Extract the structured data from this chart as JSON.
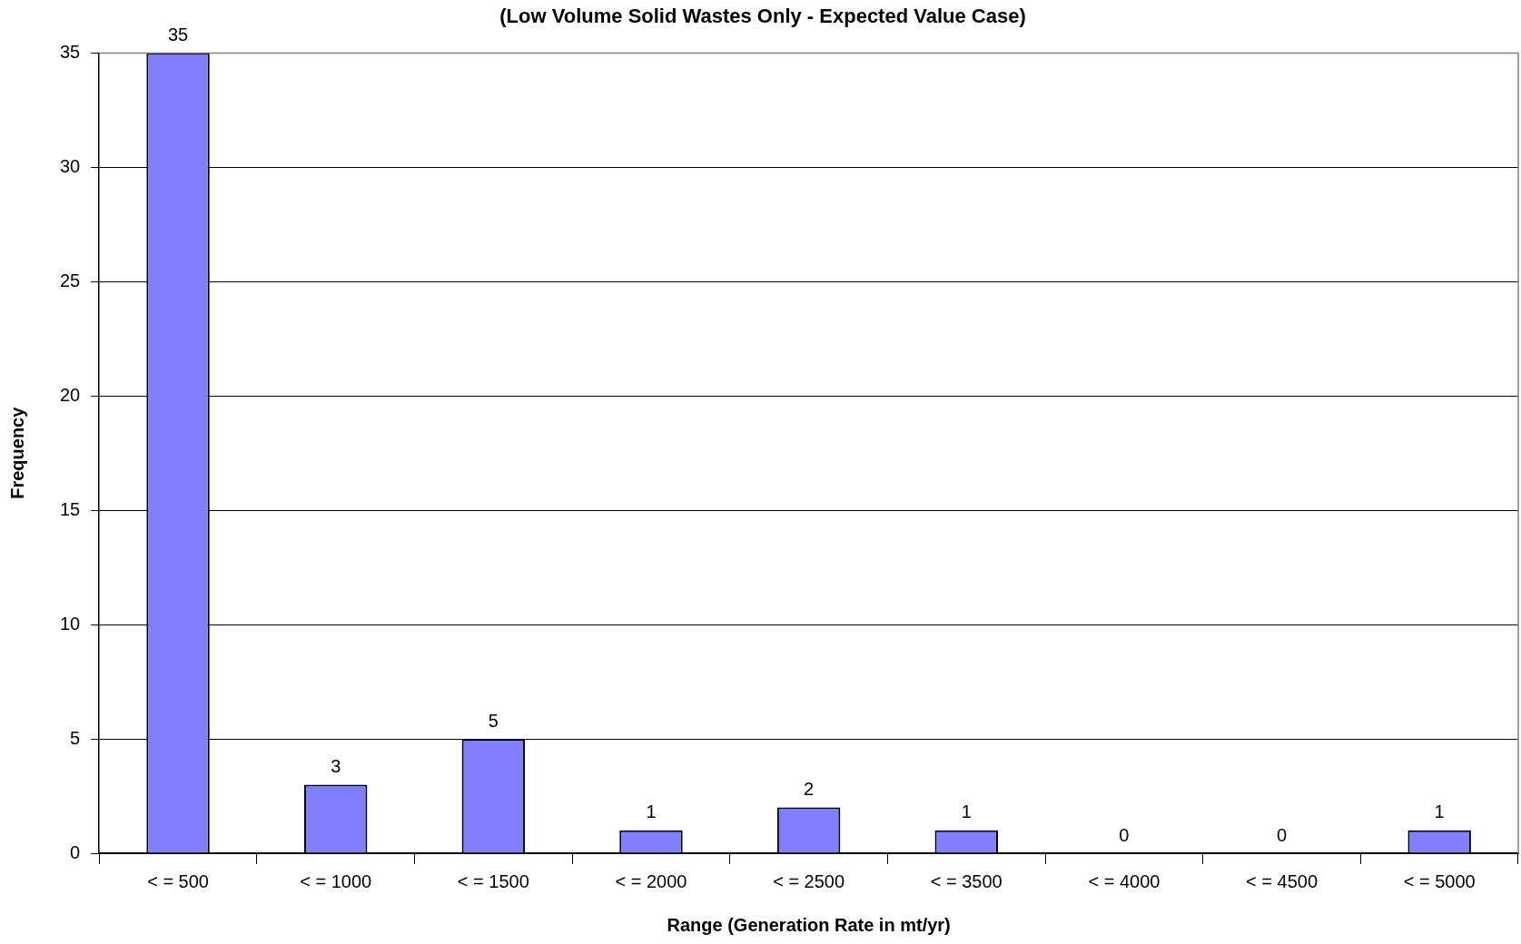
{
  "chart_data": {
    "type": "bar",
    "title": "(Low Volume Solid Wastes Only - Expected Value Case)",
    "xlabel": "Range (Generation Rate in mt/yr)",
    "ylabel": "Frequency",
    "categories": [
      "< = 500",
      "< = 1000",
      "< = 1500",
      "< = 2000",
      "< = 2500",
      "< = 3500",
      "< = 4000",
      "< = 4500",
      "< = 5000"
    ],
    "values": [
      35,
      3,
      5,
      1,
      2,
      1,
      0,
      0,
      1
    ],
    "color": "#8080ff",
    "ylim": [
      0,
      35
    ],
    "yticks": [
      0,
      5,
      10,
      15,
      20,
      25,
      30,
      35
    ],
    "grid": "y",
    "data_labels": true
  }
}
